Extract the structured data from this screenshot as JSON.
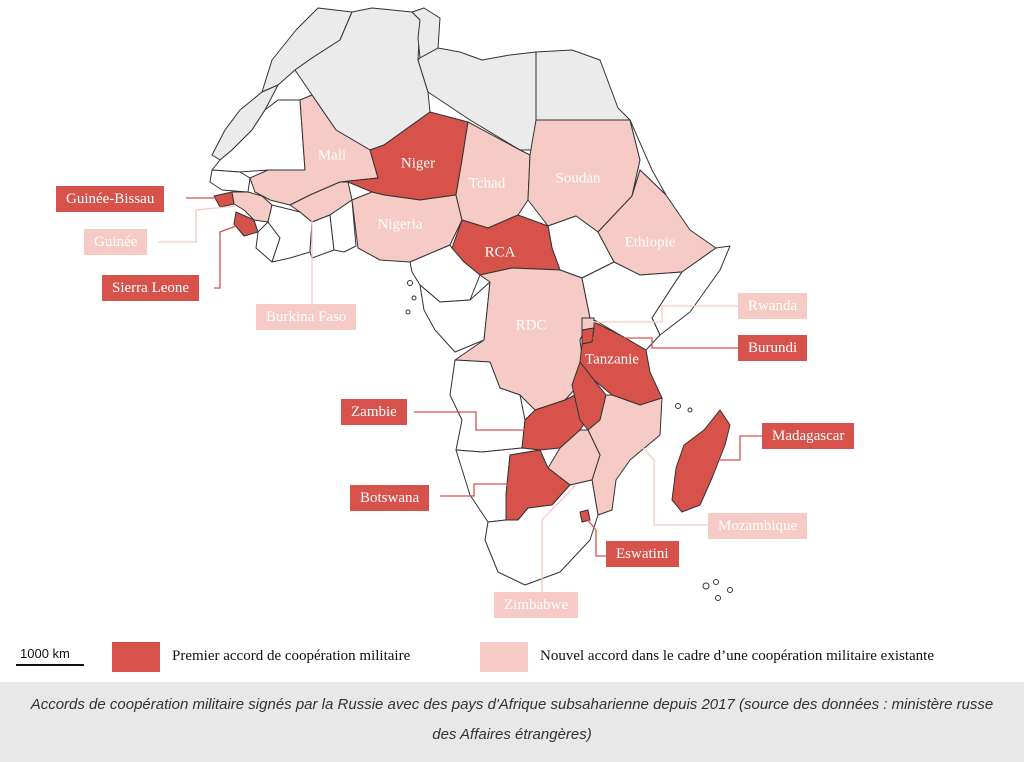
{
  "colors": {
    "first_agreement": "#d6524a",
    "new_agreement": "#f6cac5",
    "north_africa": "#ebebeb",
    "other": "#ffffff",
    "border": "#333333"
  },
  "labels": {
    "niger": "Niger",
    "mali": "Mali",
    "tchad": "Tchad",
    "soudan": "Soudan",
    "nigeria": "Nigeria",
    "ethiopie": "Ethiopie",
    "rca": "RCA",
    "rdc": "RDC",
    "tanzanie": "Tanzanie",
    "guinee_bissau": "Guinée-Bissau",
    "guinee": "Guinée",
    "sierra_leone": "Sierra Leone",
    "burkina_faso": "Burkina Faso",
    "rwanda": "Rwanda",
    "burundi": "Burundi",
    "zambie": "Zambie",
    "madagascar": "Madagascar",
    "botswana": "Botswana",
    "mozambique": "Mozambique",
    "eswatini": "Eswatini",
    "zimbabwe": "Zimbabwe"
  },
  "legend": {
    "scale": "1000 km",
    "first_agreement": "Premier accord de coopération militaire",
    "new_agreement": "Nouvel accord dans le cadre d’une coopération militaire existante"
  },
  "caption": "Accords de coopération militaire signés par la Russie avec des pays d'Afrique subsaharienne depuis 2017 (source des données : ministère russe des Affaires étrangères)"
}
